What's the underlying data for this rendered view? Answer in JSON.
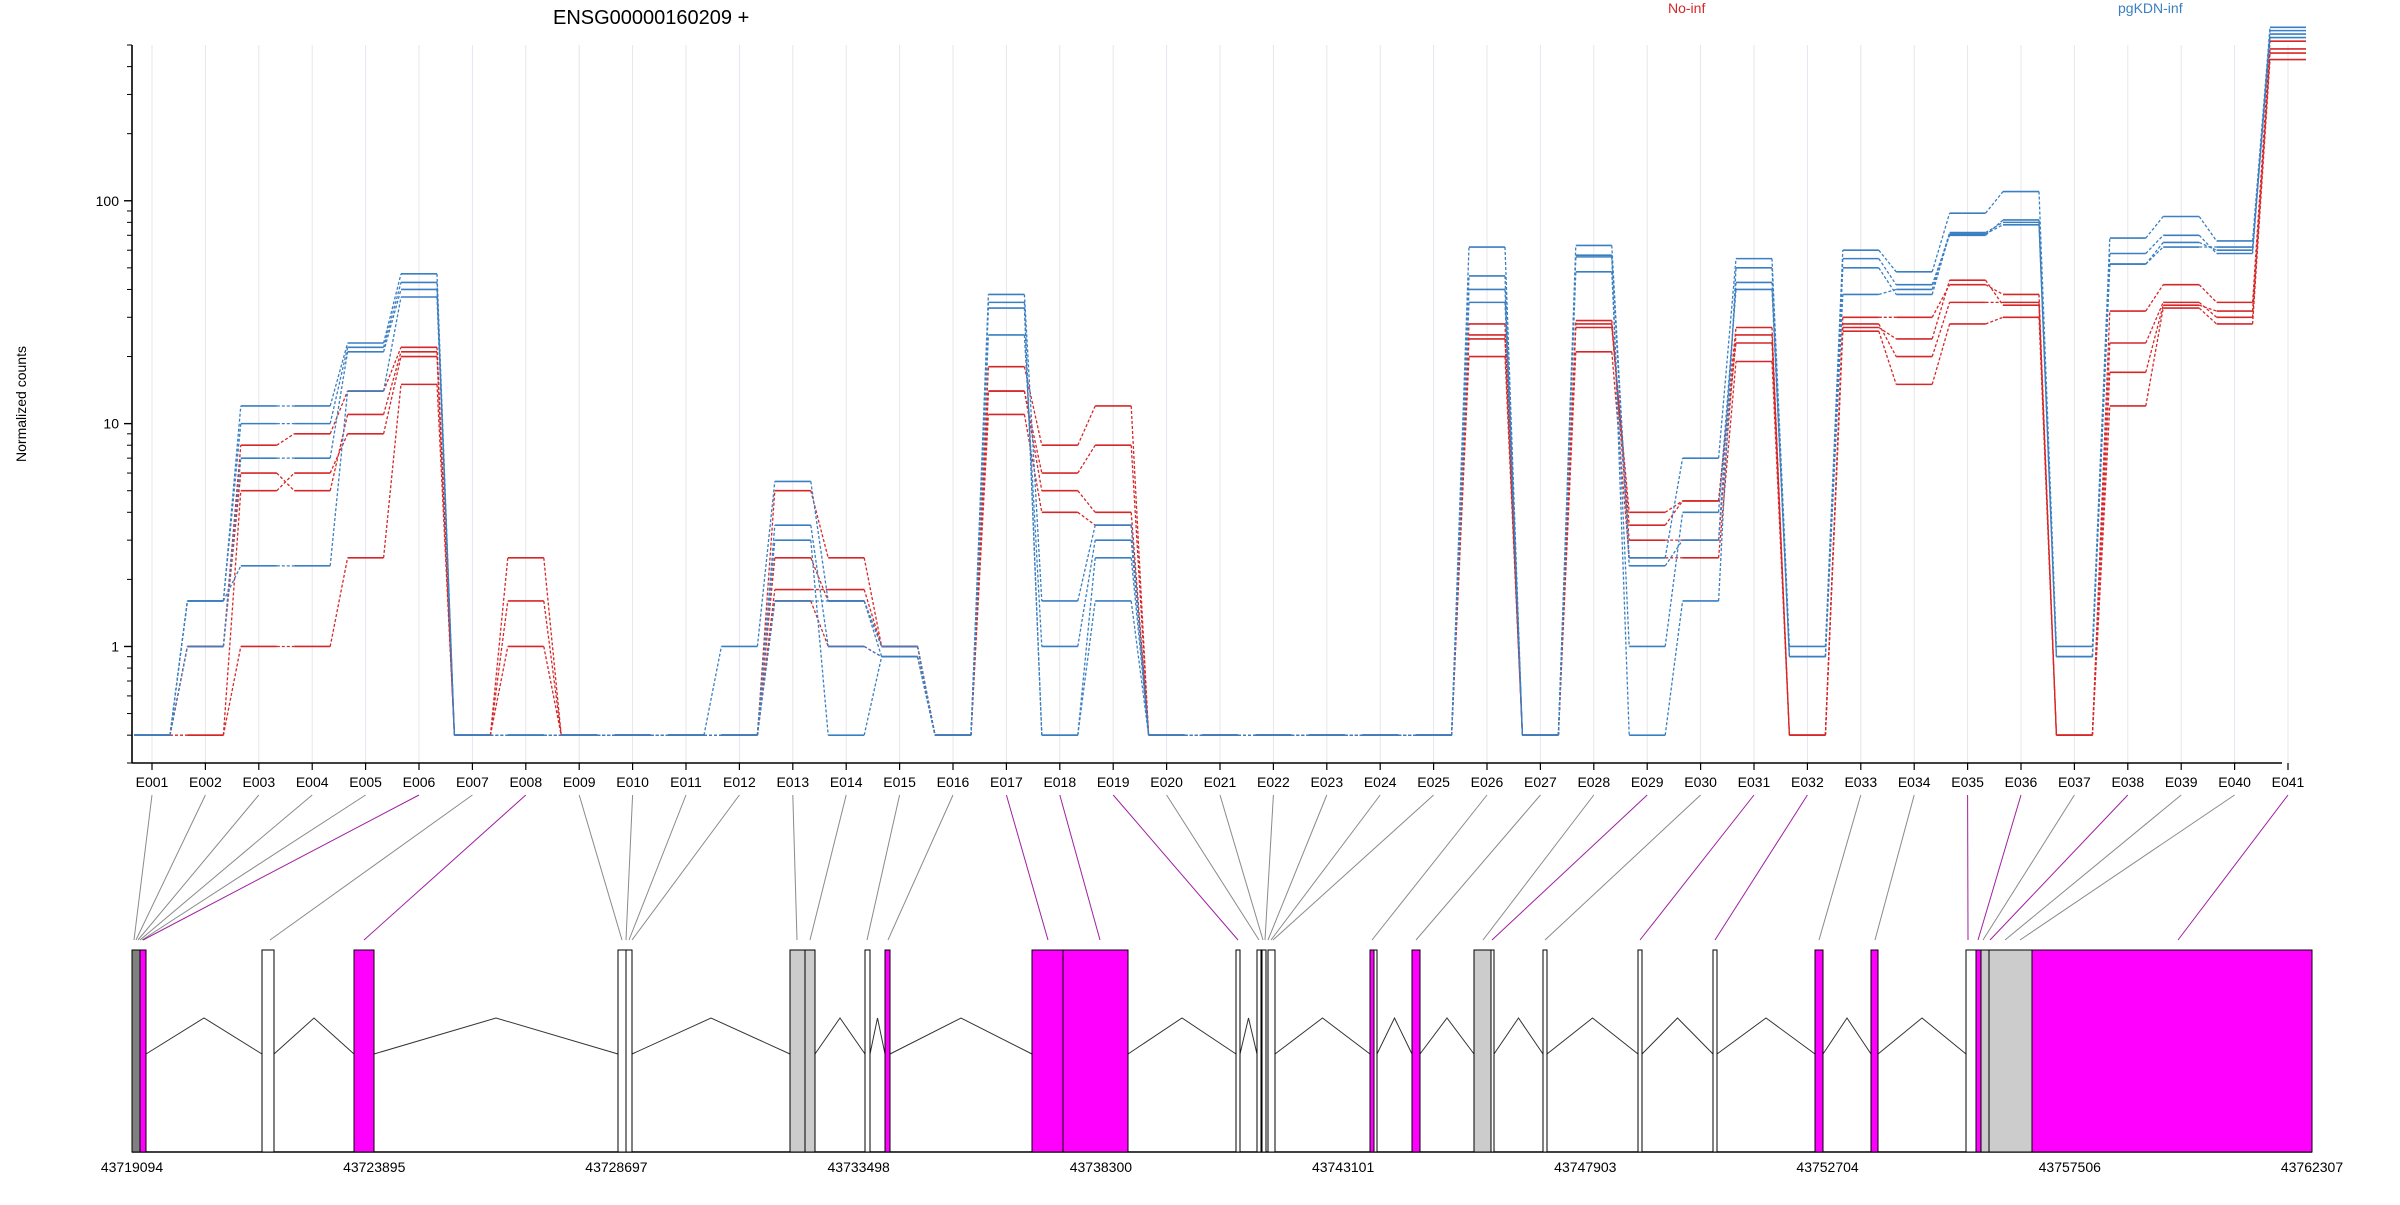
{
  "chart_data": {
    "type": "line",
    "title": "ENSG00000160209 +",
    "ylabel": "Normalized counts",
    "xlabel": "",
    "yscale": "log",
    "ylim": [
      0.3,
      500
    ],
    "yticks": [
      1,
      10,
      100
    ],
    "ytick_labels": [
      "1",
      "10",
      "100"
    ],
    "grid": "vertical per exon",
    "legend_placement": "top-right",
    "legend": [
      {
        "name": "No-inf",
        "color": "#d62728"
      },
      {
        "name": "pgKDN-inf",
        "color": "#3a7fc1"
      }
    ],
    "categories": [
      "E001",
      "E002",
      "E003",
      "E004",
      "E005",
      "E006",
      "E007",
      "E008",
      "E009",
      "E010",
      "E011",
      "E012",
      "E013",
      "E014",
      "E015",
      "E016",
      "E017",
      "E018",
      "E019",
      "E020",
      "E021",
      "E022",
      "E023",
      "E024",
      "E025",
      "E026",
      "E027",
      "E028",
      "E029",
      "E030",
      "E031",
      "E032",
      "E033",
      "E034",
      "E035",
      "E036",
      "E037",
      "E038",
      "E039",
      "E040",
      "E041"
    ],
    "series": [
      {
        "group": "No-inf",
        "color": "#d62728",
        "values": [
          0.4,
          0.4,
          5,
          6,
          9,
          20,
          0.4,
          1,
          0.4,
          0.4,
          0.4,
          0.4,
          1.8,
          1.8,
          1,
          0.4,
          14,
          6,
          8,
          0.4,
          0.4,
          0.4,
          0.4,
          0.4,
          0.4,
          25,
          0.4,
          28,
          3,
          3,
          25,
          0.4,
          28,
          20,
          35,
          35,
          0.4,
          23,
          35,
          30,
          480
        ]
      },
      {
        "group": "No-inf",
        "color": "#d62728",
        "values": [
          0.4,
          1,
          8,
          9,
          14,
          22,
          0.4,
          2.5,
          0.4,
          0.4,
          0.4,
          0.4,
          5,
          2.5,
          1,
          0.4,
          18,
          8,
          12,
          0.4,
          0.4,
          0.4,
          0.4,
          0.4,
          0.4,
          28,
          0.4,
          29,
          3.5,
          4.5,
          27,
          0.4,
          30,
          30,
          42,
          38,
          0.4,
          32,
          42,
          35,
          520
        ]
      },
      {
        "group": "No-inf",
        "color": "#d62728",
        "values": [
          0.4,
          0.4,
          1,
          1,
          2.5,
          15,
          0.4,
          0.4,
          0.4,
          0.4,
          0.4,
          0.4,
          1.6,
          1,
          0.9,
          0.4,
          11,
          4,
          3.5,
          0.4,
          0.4,
          0.4,
          0.4,
          0.4,
          0.4,
          20,
          0.4,
          21,
          2.5,
          2.5,
          19,
          0.4,
          26,
          15,
          28,
          30,
          0.4,
          12,
          33,
          28,
          430
        ]
      },
      {
        "group": "No-inf",
        "color": "#d62728",
        "values": [
          0.4,
          1,
          6,
          5,
          11,
          21,
          0.4,
          1.6,
          0.4,
          0.4,
          0.4,
          0.4,
          2.5,
          1.6,
          1,
          0.4,
          14,
          5,
          4,
          0.4,
          0.4,
          0.4,
          0.4,
          0.4,
          0.4,
          24,
          0.4,
          27,
          4,
          4.5,
          23,
          0.4,
          27,
          24,
          44,
          34,
          0.4,
          17,
          34,
          32,
          460
        ]
      },
      {
        "group": "pgKDN-inf",
        "color": "#3a7fc1",
        "values": [
          0.4,
          1.6,
          12,
          12,
          23,
          47,
          0.4,
          0.4,
          0.4,
          0.4,
          0.4,
          1,
          5.5,
          1.6,
          1,
          0.4,
          38,
          1.6,
          3.5,
          0.4,
          0.4,
          0.4,
          0.4,
          0.4,
          0.4,
          62,
          0.4,
          63,
          2.5,
          7,
          55,
          1,
          60,
          48,
          88,
          110,
          1,
          68,
          85,
          66,
          600
        ]
      },
      {
        "group": "pgKDN-inf",
        "color": "#3a7fc1",
        "values": [
          0.4,
          1,
          7,
          7,
          21,
          40,
          0.4,
          0.4,
          0.4,
          0.4,
          0.4,
          0.4,
          3.5,
          1,
          0.9,
          0.4,
          25,
          1,
          3,
          0.4,
          0.4,
          0.4,
          0.4,
          0.4,
          0.4,
          40,
          0.4,
          48,
          1,
          4,
          40,
          0.9,
          38,
          40,
          72,
          80,
          0.9,
          52,
          65,
          60,
          540
        ]
      },
      {
        "group": "pgKDN-inf",
        "color": "#3a7fc1",
        "values": [
          0.4,
          1.6,
          10,
          10,
          22,
          43,
          0.4,
          0.4,
          0.4,
          0.4,
          0.4,
          0.4,
          3,
          0.4,
          0.9,
          0.4,
          33,
          0.4,
          2.5,
          0.4,
          0.4,
          0.4,
          0.4,
          0.4,
          0.4,
          46,
          0.4,
          57,
          2.3,
          3,
          43,
          0.9,
          55,
          42,
          70,
          82,
          0.9,
          58,
          70,
          58,
          560
        ]
      },
      {
        "group": "pgKDN-inf",
        "color": "#3a7fc1",
        "values": [
          0.4,
          1.6,
          2.3,
          2.3,
          14,
          37,
          0.4,
          0.4,
          0.4,
          0.4,
          0.4,
          0.4,
          1.6,
          1.6,
          0.9,
          0.4,
          35,
          0.4,
          1.6,
          0.4,
          0.4,
          0.4,
          0.4,
          0.4,
          0.4,
          35,
          0.4,
          56,
          0.4,
          1.6,
          50,
          0.9,
          50,
          38,
          71,
          78,
          0.9,
          52,
          62,
          62,
          580
        ]
      }
    ],
    "gene_model": {
      "coordinate_labels": [
        "43719094",
        "43723895",
        "43728697",
        "43733498",
        "43738300",
        "43743101",
        "43747903",
        "43752704",
        "43757506",
        "43762307"
      ]
    }
  }
}
